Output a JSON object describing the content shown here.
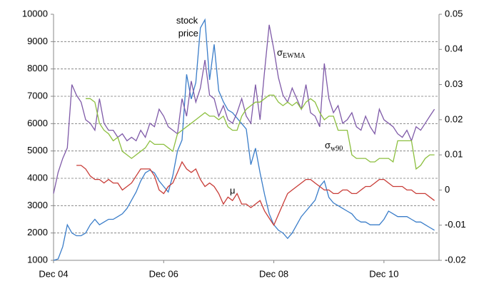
{
  "chart_data": {
    "type": "line",
    "x": [
      0,
      1,
      2,
      3,
      4,
      5,
      6,
      7,
      8,
      9,
      10,
      11,
      12,
      13,
      14,
      15,
      16,
      17,
      18,
      19,
      20,
      21,
      22,
      23,
      24,
      25,
      26,
      27,
      28,
      29,
      30,
      31,
      32,
      33,
      34,
      35,
      36,
      37,
      38,
      39,
      40,
      41,
      42,
      43,
      44,
      45,
      46,
      47,
      48,
      49,
      50,
      51,
      52,
      53,
      54,
      55,
      56,
      57,
      58,
      59,
      60,
      61,
      62,
      63,
      64,
      65,
      66,
      67,
      68,
      69,
      70,
      71,
      72,
      73,
      74,
      75,
      76,
      77,
      78,
      79,
      80,
      81,
      82,
      83
    ],
    "xlim": [
      0,
      84
    ],
    "xticks": [
      {
        "value": 0,
        "label": "Dec 04"
      },
      {
        "value": 24,
        "label": "Dec 06"
      },
      {
        "value": 48,
        "label": "Dec 08"
      },
      {
        "value": 72,
        "label": "Dec 10"
      }
    ],
    "ylim": [
      1000,
      10000
    ],
    "yticks": [
      1000,
      2000,
      3000,
      4000,
      5000,
      6000,
      7000,
      8000,
      9000,
      10000
    ],
    "y2lim": [
      -0.02,
      0.05
    ],
    "y2ticks": [
      -0.02,
      -0.01,
      0,
      0.01,
      0.02,
      0.03,
      0.04,
      0.05
    ],
    "grid": true,
    "series": [
      {
        "name": "stock price",
        "color": "#3a7dc9",
        "values": [
          1000,
          1050,
          1500,
          2300,
          2000,
          1900,
          1900,
          2000,
          2300,
          2500,
          2300,
          2400,
          2500,
          2500,
          2600,
          2700,
          2900,
          3200,
          3500,
          3900,
          4200,
          4300,
          4200,
          3900,
          3700,
          3500,
          4100,
          5000,
          5400,
          7800,
          6900,
          7500,
          9500,
          9800,
          7600,
          8900,
          7200,
          6800,
          6500,
          6400,
          6200,
          6000,
          5800,
          4500,
          5100,
          4200,
          3400,
          2700,
          2300,
          2100,
          2000,
          1800,
          2000,
          2300,
          2600,
          2800,
          3000,
          3200,
          3700,
          3900,
          3300,
          3100,
          3000,
          2900,
          2800,
          2700,
          2500,
          2400,
          2400,
          2300,
          2300,
          2300,
          2500,
          2800,
          2700,
          2600,
          2600,
          2600,
          2500,
          2400,
          2400,
          2300,
          2200,
          2100
        ]
      },
      {
        "name": "σEWMA",
        "color": "#7f5aa8",
        "axis": "y2",
        "values": [
          -0.001,
          0.005,
          0.009,
          0.012,
          0.03,
          0.027,
          0.025,
          0.02,
          0.019,
          0.017,
          0.026,
          0.019,
          0.017,
          0.017,
          0.015,
          0.016,
          0.014,
          0.015,
          0.014,
          0.017,
          0.015,
          0.019,
          0.018,
          0.023,
          0.021,
          0.018,
          0.017,
          0.016,
          0.026,
          0.021,
          0.031,
          0.025,
          0.029,
          0.037,
          0.027,
          0.026,
          0.021,
          0.024,
          0.02,
          0.019,
          0.022,
          0.026,
          0.021,
          0.019,
          0.03,
          0.02,
          0.034,
          0.047,
          0.04,
          0.032,
          0.027,
          0.025,
          0.029,
          0.026,
          0.023,
          0.03,
          0.022,
          0.021,
          0.018,
          0.036,
          0.026,
          0.022,
          0.024,
          0.019,
          0.02,
          0.022,
          0.018,
          0.017,
          0.021,
          0.018,
          0.016,
          0.023,
          0.02,
          0.019,
          0.018,
          0.016,
          0.015,
          0.017,
          0.014,
          0.018,
          0.017,
          0.019,
          0.021,
          0.023
        ]
      },
      {
        "name": "σw90",
        "color": "#8cbf3f",
        "axis": "y2",
        "values": [
          null,
          null,
          null,
          null,
          null,
          null,
          null,
          0.026,
          0.026,
          0.025,
          0.019,
          0.017,
          0.016,
          0.014,
          0.015,
          0.011,
          0.01,
          0.009,
          0.01,
          0.011,
          0.012,
          0.014,
          0.013,
          0.013,
          0.013,
          0.012,
          0.011,
          0.016,
          0.017,
          0.018,
          0.019,
          0.02,
          0.021,
          0.022,
          0.021,
          0.021,
          0.02,
          0.021,
          0.018,
          0.017,
          0.017,
          0.021,
          0.023,
          0.024,
          0.025,
          0.025,
          0.026,
          0.027,
          0.027,
          0.025,
          0.024,
          0.025,
          0.024,
          0.025,
          0.023,
          0.025,
          0.026,
          0.025,
          0.022,
          0.02,
          0.021,
          0.021,
          0.017,
          0.017,
          0.017,
          0.01,
          0.009,
          0.009,
          0.009,
          0.008,
          0.008,
          0.009,
          0.009,
          0.009,
          0.008,
          0.014,
          0.014,
          0.014,
          0.014,
          0.006,
          0.007,
          0.009,
          0.01,
          0.01
        ]
      },
      {
        "name": "μ",
        "color": "#c83c37",
        "axis": "y2",
        "values": [
          null,
          null,
          null,
          null,
          null,
          0.007,
          0.007,
          0.006,
          0.004,
          0.003,
          0.003,
          0.002,
          0.003,
          0.002,
          0.002,
          0,
          0.001,
          0.002,
          0.004,
          0.006,
          0.006,
          0.006,
          0.004,
          0,
          -0.001,
          0.001,
          0.002,
          0.005,
          0.008,
          0.006,
          0.005,
          0.006,
          0.003,
          0.001,
          0.002,
          0.001,
          -0.001,
          -0.004,
          -0.002,
          -0.003,
          -0.001,
          -0.004,
          -0.004,
          -0.005,
          -0.004,
          -0.003,
          -0.006,
          -0.008,
          -0.01,
          -0.007,
          -0.004,
          -0.001,
          0,
          0.001,
          0.002,
          0.003,
          0.003,
          0.002,
          0.001,
          0,
          0,
          -0.001,
          -0.001,
          0,
          0,
          -0.001,
          -0.001,
          0,
          0.001,
          0.001,
          0.002,
          0.003,
          0.003,
          0.002,
          0.001,
          0.001,
          0.001,
          0,
          0,
          -0.001,
          -0.001,
          -0.001,
          -0.002,
          -0.003
        ]
      }
    ]
  }
}
